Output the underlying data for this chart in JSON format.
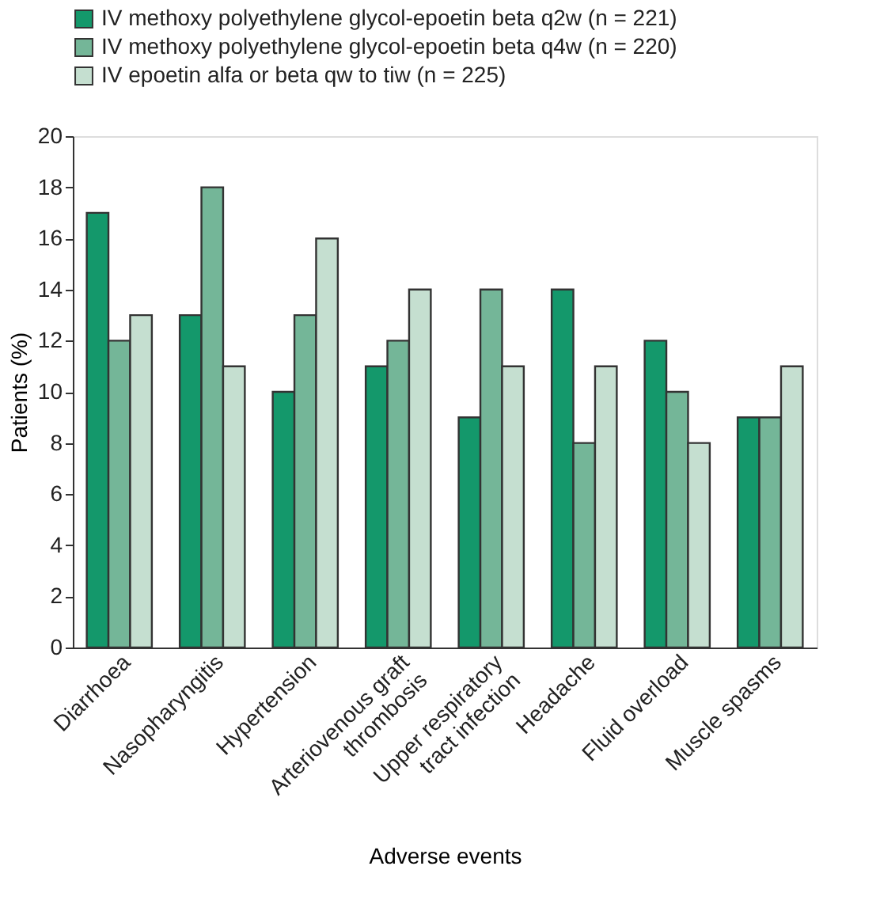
{
  "chart_data": {
    "type": "bar",
    "categories": [
      "Diarrhoea",
      "Nasopharyngitis",
      "Hypertension",
      "Arteriovenous graft\nthrombosis",
      "Upper respiratory\ntract infection",
      "Headache",
      "Fluid overload",
      "Muscle spasms"
    ],
    "series": [
      {
        "name": "IV methoxy polyethylene glycol-epoetin beta q2w (n = 221)",
        "color": "#14986b",
        "values": [
          17,
          13,
          10,
          11,
          9,
          14,
          12,
          9
        ]
      },
      {
        "name": "IV methoxy polyethylene glycol-epoetin beta q4w (n = 220)",
        "color": "#74b698",
        "values": [
          12,
          18,
          13,
          12,
          14,
          8,
          10,
          9
        ]
      },
      {
        "name": "IV epoetin alfa or beta qw to tiw (n = 225)",
        "color": "#c5dfd0",
        "values": [
          13,
          11,
          16,
          14,
          11,
          11,
          8,
          11
        ]
      }
    ],
    "xlabel": "Adverse events",
    "ylabel": "Patients (%)",
    "ylim": [
      0,
      20
    ],
    "yticks": [
      0,
      2,
      4,
      6,
      8,
      10,
      12,
      14,
      16,
      18,
      20
    ],
    "grid": false,
    "legend": "top"
  }
}
